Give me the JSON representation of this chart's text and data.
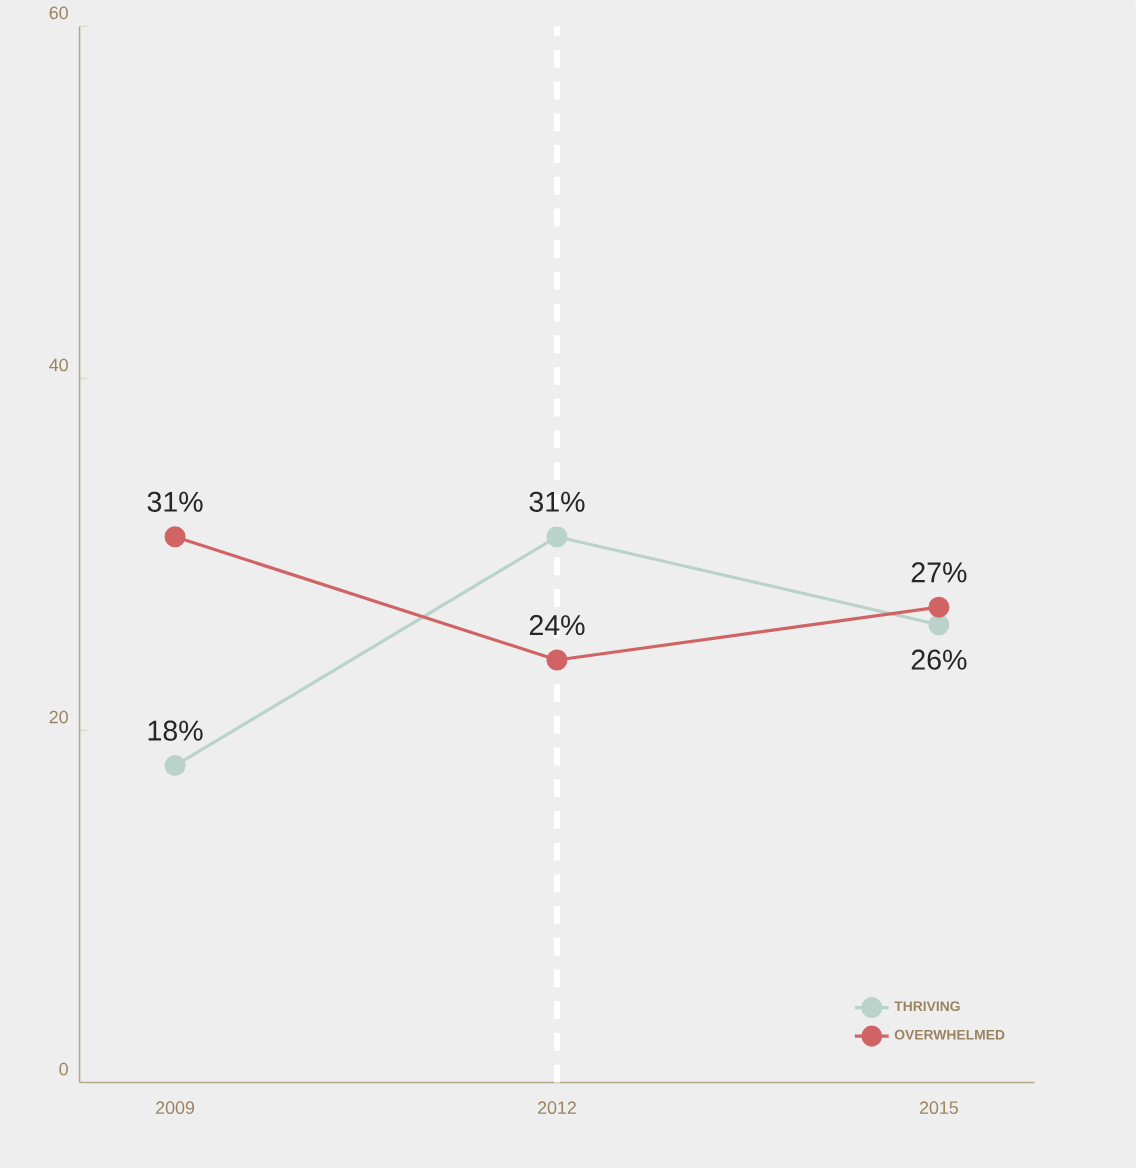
{
  "chart_data": {
    "type": "line",
    "x": [
      2009,
      2012,
      2015
    ],
    "xlim": [
      2008.25,
      2015.75
    ],
    "xticks": [
      2009,
      2012,
      2015
    ],
    "ylim": [
      0,
      60
    ],
    "yticks": [
      0,
      20,
      40,
      60
    ],
    "series": [
      {
        "name": "THRIVING",
        "color": "#b9d3cb",
        "values": [
          18,
          31,
          26
        ],
        "value_labels": [
          "18%",
          "31%",
          "26%"
        ]
      },
      {
        "name": "OVERWHELMED",
        "color": "#d06464",
        "values": [
          31,
          24,
          27
        ],
        "value_labels": [
          "31%",
          "24%",
          "27%"
        ]
      }
    ],
    "ref_lines": [
      {
        "axis": "x",
        "value": 2012,
        "color": "#ffffff",
        "line_style": "dashed"
      }
    ],
    "marker": "circle",
    "legend": "bottom right",
    "grid": false
  }
}
